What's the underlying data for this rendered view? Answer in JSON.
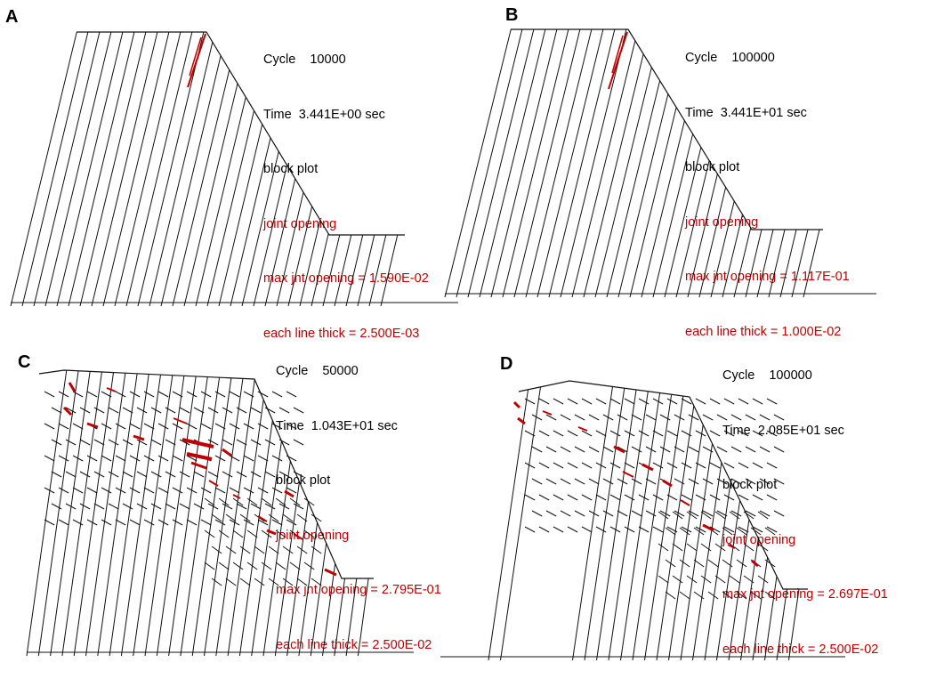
{
  "panels": [
    {
      "id": "A",
      "letter": "A",
      "cycle": "Cycle    10000",
      "time": "Time  3.441E+00 sec",
      "plot_type": "block plot",
      "legend": "joint opening",
      "max_opening": "max jnt opening = 1.590E-02",
      "line_thick": "each line thick = 2.500E-03"
    },
    {
      "id": "B",
      "letter": "B",
      "cycle": "Cycle    100000",
      "time": "Time  3.441E+01 sec",
      "plot_type": "block plot",
      "legend": "joint opening",
      "max_opening": "max jnt opening = 1.117E-01",
      "line_thick": "each line thick = 1.000E-02"
    },
    {
      "id": "C",
      "letter": "C",
      "cycle": "Cycle    50000",
      "time": "Time  1.043E+01 sec",
      "plot_type": "block plot",
      "legend": "joint opening",
      "max_opening": "max jnt opening = 2.795E-01",
      "line_thick": "each line thick = 2.500E-02"
    },
    {
      "id": "D",
      "letter": "D",
      "cycle": "Cycle    100000",
      "time": "Time  2.085E+01 sec",
      "plot_type": "block plot",
      "legend": "joint opening",
      "max_opening": "max jnt opening = 2.697E-01",
      "line_thick": "each line thick = 2.500E-02"
    }
  ],
  "colors": {
    "text": "#000000",
    "opening": "#c00000",
    "lines": "#111111"
  }
}
